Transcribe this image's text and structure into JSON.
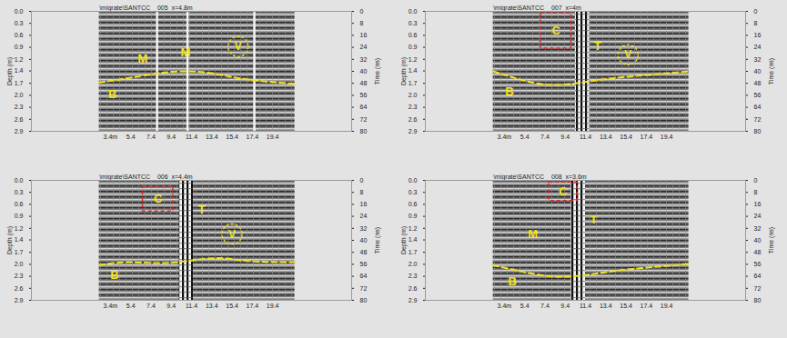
{
  "chart_data": [
    {
      "type": "radargram",
      "title": "\\migrate\\SANTCC__005  x=4.8m",
      "xlim": [
        -4.4,
        27.2
      ],
      "xticks": [
        {
          "value": 3.4,
          "label": "3.4m"
        },
        5.4,
        7.4,
        9.4,
        11.4,
        13.4,
        15.4,
        17.4,
        19.4
      ],
      "ylim": [
        0,
        2.9
      ],
      "yticks": [
        {
          "value": 0,
          "label": "0.0"
        },
        {
          "value": 0.29,
          "label": "0.3"
        },
        {
          "value": 0.58,
          "label": "0.6"
        },
        {
          "value": 0.87,
          "label": "0.9"
        },
        {
          "value": 1.16,
          "label": "1.2"
        },
        {
          "value": 1.44,
          "label": "1.4"
        },
        {
          "value": 1.74,
          "label": "1.7"
        },
        {
          "value": 2.03,
          "label": "2.0"
        },
        {
          "value": 2.32,
          "label": "2.3"
        },
        {
          "value": 2.61,
          "label": "2.6"
        },
        2.9
      ],
      "y_label": "Depth (m)",
      "y2lim": [
        0,
        80
      ],
      "y2ticks": [
        0,
        8,
        16,
        24,
        32,
        40,
        48,
        56,
        64,
        72,
        80
      ],
      "y2_label": "Time (ns)",
      "profile_extent": [
        2.3,
        21.6
      ],
      "bright_traces": [
        8.0,
        11.0,
        17.6
      ],
      "boundary": {
        "label": "B",
        "x": [
          2.3,
          5,
          8,
          11,
          14,
          17,
          21.6
        ],
        "depth": [
          1.72,
          1.62,
          1.5,
          1.45,
          1.52,
          1.65,
          1.75
        ],
        "label_x": 3.6,
        "label_depth": 2.0
      },
      "labels": [
        {
          "text": "M",
          "x": 6.6,
          "depth": 1.15
        },
        {
          "text": "M",
          "x": 10.8,
          "depth": 1.0
        }
      ],
      "voids": [
        {
          "label": "V",
          "x": 16.0,
          "depth": 0.85
        }
      ]
    },
    {
      "type": "radargram",
      "title": "\\migrate\\SANTCC__007  x=4m",
      "xlim": [
        -4.4,
        27.2
      ],
      "xticks": [
        {
          "value": 3.4,
          "label": "3.4m"
        },
        5.4,
        7.4,
        9.4,
        11.4,
        13.4,
        15.4,
        17.4,
        19.4
      ],
      "ylim": [
        0,
        2.9
      ],
      "yticks": [
        {
          "value": 0,
          "label": "0.0"
        },
        {
          "value": 0.29,
          "label": "0.3"
        },
        {
          "value": 0.58,
          "label": "0.6"
        },
        {
          "value": 0.87,
          "label": "0.9"
        },
        {
          "value": 1.16,
          "label": "1.2"
        },
        {
          "value": 1.44,
          "label": "1.4"
        },
        {
          "value": 1.74,
          "label": "1.7"
        },
        {
          "value": 2.03,
          "label": "2.0"
        },
        {
          "value": 2.32,
          "label": "2.3"
        },
        {
          "value": 2.61,
          "label": "2.6"
        },
        2.9
      ],
      "y_label": "Depth (m)",
      "y2lim": [
        0,
        80
      ],
      "y2ticks": [
        0,
        8,
        16,
        24,
        32,
        40,
        48,
        56,
        64,
        72,
        80
      ],
      "y2_label": "Time (ns)",
      "profile_extent": [
        2.3,
        21.6
      ],
      "boundary": {
        "label": "B",
        "x": [
          2.3,
          5,
          8,
          11,
          14,
          17,
          21.6
        ],
        "depth": [
          1.45,
          1.65,
          1.78,
          1.72,
          1.62,
          1.55,
          1.45
        ],
        "label_x": 3.9,
        "label_depth": 1.95
      },
      "box": {
        "label": "C",
        "x": [
          7.0,
          10.0
        ],
        "depth": [
          0.05,
          0.9
        ]
      },
      "target": {
        "label": "T",
        "x": [
          10.4,
          11.8
        ],
        "label_x": 12.6,
        "label_depth": 0.85
      },
      "voids": [
        {
          "label": "V",
          "x": 15.6,
          "depth": 1.05
        }
      ]
    },
    {
      "type": "radargram",
      "title": "\\migrate\\SANTCC__006  x=4.4m",
      "xlim": [
        -4.4,
        27.2
      ],
      "xticks": [
        {
          "value": 3.4,
          "label": "3.4m"
        },
        5.4,
        7.4,
        9.4,
        11.4,
        13.4,
        15.4,
        17.4,
        19.4
      ],
      "ylim": [
        0,
        2.9
      ],
      "yticks": [
        {
          "value": 0,
          "label": "0.0"
        },
        {
          "value": 0.29,
          "label": "0.3"
        },
        {
          "value": 0.58,
          "label": "0.6"
        },
        {
          "value": 0.87,
          "label": "0.9"
        },
        {
          "value": 1.16,
          "label": "1.2"
        },
        {
          "value": 1.44,
          "label": "1.4"
        },
        {
          "value": 1.74,
          "label": "1.7"
        },
        {
          "value": 2.03,
          "label": "2.0"
        },
        {
          "value": 2.32,
          "label": "2.3"
        },
        {
          "value": 2.61,
          "label": "2.6"
        },
        2.9
      ],
      "y_label": "Depth (m)",
      "y2lim": [
        0,
        80
      ],
      "y2ticks": [
        0,
        8,
        16,
        24,
        32,
        40,
        48,
        56,
        64,
        72,
        80
      ],
      "y2_label": "Time (ns)",
      "profile_extent": [
        2.3,
        21.6
      ],
      "boundary": {
        "label": "B",
        "x": [
          2.3,
          5,
          8,
          11,
          14,
          17,
          21.6
        ],
        "depth": [
          2.05,
          1.98,
          2.0,
          1.95,
          1.88,
          1.95,
          1.98
        ],
        "label_x": 3.8,
        "label_depth": 2.3
      },
      "box": {
        "label": "C",
        "x": [
          6.6,
          9.6
        ],
        "depth": [
          0.15,
          0.75
        ]
      },
      "target": {
        "label": "T",
        "x": [
          10.2,
          11.6
        ],
        "label_x": 12.4,
        "label_depth": 0.7
      },
      "voids": [
        {
          "label": "V",
          "x": 15.4,
          "depth": 1.3
        }
      ]
    },
    {
      "type": "radargram",
      "title": "\\migrate\\SANTCC__008  x=3.6m",
      "xlim": [
        -4.4,
        27.2
      ],
      "xticks": [
        {
          "value": 3.4,
          "label": "3.4m"
        },
        5.4,
        7.4,
        9.4,
        11.4,
        13.4,
        15.4,
        17.4,
        19.4
      ],
      "ylim": [
        0,
        2.9
      ],
      "yticks": [
        {
          "value": 0,
          "label": "0.0"
        },
        {
          "value": 0.29,
          "label": "0.3"
        },
        {
          "value": 0.58,
          "label": "0.6"
        },
        {
          "value": 0.87,
          "label": "0.9"
        },
        {
          "value": 1.16,
          "label": "1.2"
        },
        {
          "value": 1.44,
          "label": "1.4"
        },
        {
          "value": 1.74,
          "label": "1.7"
        },
        {
          "value": 2.03,
          "label": "2.0"
        },
        {
          "value": 2.32,
          "label": "2.3"
        },
        {
          "value": 2.61,
          "label": "2.6"
        },
        2.9
      ],
      "y_label": "Depth (m)",
      "y2lim": [
        0,
        80
      ],
      "y2ticks": [
        0,
        8,
        16,
        24,
        32,
        40,
        48,
        56,
        64,
        72,
        80
      ],
      "y2_label": "Time (ns)",
      "profile_extent": [
        2.3,
        21.6
      ],
      "boundary": {
        "label": "B",
        "x": [
          2.3,
          5,
          8,
          11,
          14,
          17,
          21.6
        ],
        "depth": [
          2.05,
          2.2,
          2.32,
          2.3,
          2.2,
          2.12,
          2.02
        ],
        "label_x": 4.2,
        "label_depth": 2.45
      },
      "labels": [
        {
          "text": "M",
          "x": 6.2,
          "depth": 1.3
        }
      ],
      "box": {
        "label": "C",
        "x": [
          7.8,
          10.6
        ],
        "depth": [
          0.05,
          0.5
        ]
      },
      "target": {
        "label": "T",
        "x": [
          10.0,
          11.4
        ],
        "label_x": 12.2,
        "label_depth": 0.95
      }
    }
  ]
}
